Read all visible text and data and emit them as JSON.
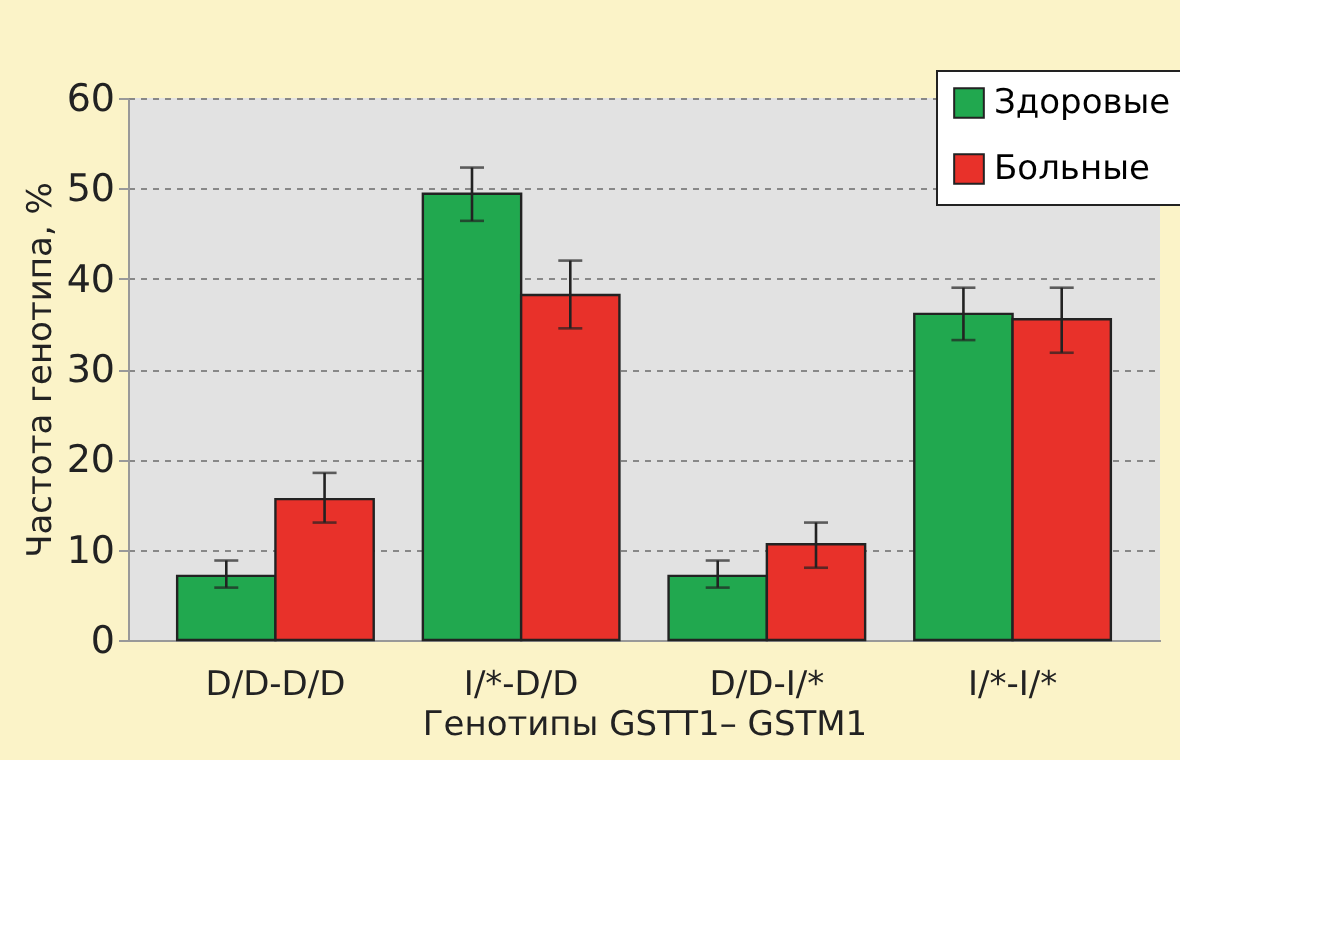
{
  "chart_data": {
    "type": "bar",
    "xlabel": "Генотипы GSTT1– GSTM1",
    "ylabel": "Частота генотипа, %",
    "categories": [
      "D/D-D/D",
      "I/*-D/D",
      "D/D-I/*",
      "I/*-I/*"
    ],
    "series": [
      {
        "name": "Здоровые",
        "color": "#21a84f",
        "values": [
          7.1,
          49.4,
          7.1,
          36.1
        ],
        "errors": [
          [
            5.8,
            8.8
          ],
          [
            46.4,
            52.3
          ],
          [
            5.8,
            8.8
          ],
          [
            33.2,
            39
          ]
        ]
      },
      {
        "name": "Больные",
        "color": "#e8312a",
        "values": [
          15.6,
          38.2,
          10.6,
          35.5
        ],
        "errors": [
          [
            13,
            18.5
          ],
          [
            34.5,
            42
          ],
          [
            8,
            13
          ],
          [
            31.8,
            39
          ]
        ]
      }
    ],
    "ylim": [
      0,
      60
    ],
    "yticks": [
      0,
      10,
      20,
      30,
      40,
      50,
      60
    ],
    "grid": "y",
    "legend": "top right"
  }
}
